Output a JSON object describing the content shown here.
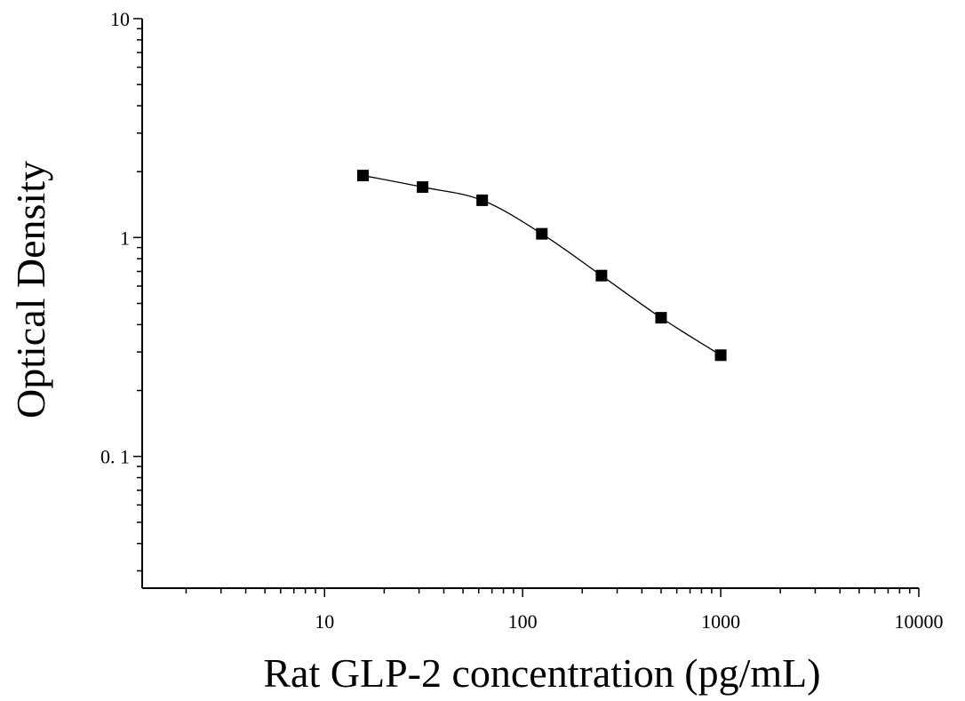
{
  "chart_data": {
    "type": "scatter",
    "title": "",
    "xlabel": "Rat GLP-2 concentration (pg/mL)",
    "ylabel": "Optical Density",
    "xscale": "log",
    "yscale": "log",
    "xlim": [
      1.2,
      10000
    ],
    "ylim": [
      0.025,
      10
    ],
    "xticks": [
      {
        "value": 10,
        "label": "10"
      },
      {
        "value": 100,
        "label": "100"
      },
      {
        "value": 1000,
        "label": "1000"
      },
      {
        "value": 10000,
        "label": "10000"
      }
    ],
    "yticks": [
      {
        "value": 0.1,
        "label": "0. 1"
      },
      {
        "value": 1,
        "label": "1"
      },
      {
        "value": 10,
        "label": "10"
      }
    ],
    "grid": false,
    "legend": "none",
    "series": [
      {
        "x": [
          15.625,
          31.25,
          62.5,
          125,
          250,
          500,
          1000
        ],
        "y": [
          1.92,
          1.7,
          1.48,
          1.04,
          0.67,
          0.43,
          0.29
        ],
        "marker": "square",
        "color": "#000000",
        "fit_curve": true
      }
    ]
  }
}
